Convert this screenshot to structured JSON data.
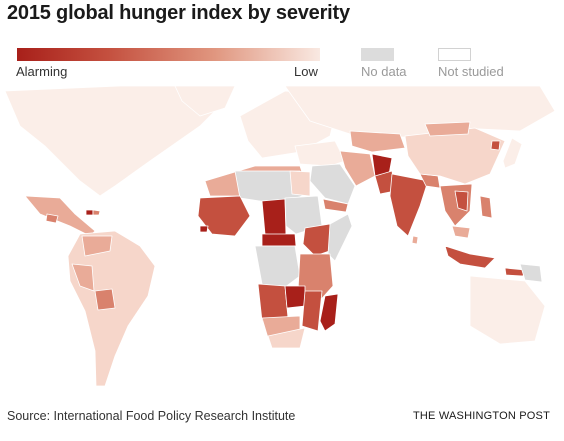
{
  "title": "2015 global hunger index by severity",
  "legend": {
    "high_label": "Alarming",
    "low_label": "Low",
    "no_data_label": "No data",
    "not_studied_label": "Not studied",
    "gradient_colors": [
      "#a8201a",
      "#c4503f",
      "#e0967f",
      "#f9e9e2"
    ],
    "no_data_color": "#dcdcdc",
    "not_studied_color": "#ffffff"
  },
  "colors": {
    "not_studied_land": "#fbeee8",
    "no_data": "#dcdcdc",
    "alarming": "#a8201a",
    "serious": "#c4503f",
    "moderate": "#d9826d",
    "low_moderate": "#e9ab98",
    "low": "#f6d6ca",
    "border": "#ffffff"
  },
  "source": "Source: International Food Policy Research Institute",
  "brand": "THE WASHINGTON POST"
}
